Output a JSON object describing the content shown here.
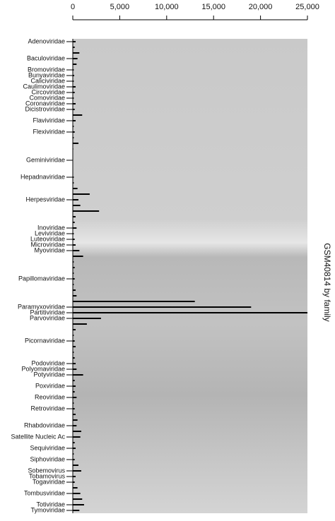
{
  "chart_data": {
    "type": "hbar",
    "y_axis_title": "GSM40814 by family",
    "color": "#000000",
    "xlim": [
      0,
      25000
    ],
    "xticks": [
      0,
      {
        "value": 5000,
        "label": "5,000"
      },
      {
        "value": 10000,
        "label": "10,000"
      },
      {
        "value": 15000,
        "label": "15,000"
      },
      {
        "value": 20000,
        "label": "20,000"
      },
      {
        "value": 25000,
        "label": "25,000"
      }
    ],
    "categories": [
      "Adenoviridae",
      null,
      null,
      "Baculoviridae",
      null,
      "Bromoviridae",
      "Bunyaviridae",
      "Caliciviridae",
      "Caulimoviridae",
      "Circoviridae",
      "Comoviridae",
      "Coronaviridae",
      "Dicistroviridae",
      null,
      "Flaviviridae",
      null,
      "Flexiviridae",
      null,
      null,
      null,
      null,
      "Geminiviridae",
      null,
      null,
      "Hepadnaviridae",
      null,
      null,
      null,
      "Herpesviridae",
      null,
      null,
      null,
      null,
      "Inoviridae",
      "Leviviridae",
      "Luteoviridae",
      "Microviridae",
      "Myoviridae",
      null,
      null,
      null,
      null,
      "Papillomaviridae",
      null,
      null,
      null,
      null,
      "Paramyxoviridae",
      "Partitiviridae",
      "Parvoviridae",
      null,
      null,
      null,
      "Picornaviridae",
      null,
      null,
      null,
      "Podoviridae",
      "Polyomaviridae",
      "Potyviridae",
      null,
      "Poxviridae",
      null,
      "Reoviridae",
      null,
      "Retroviridae",
      null,
      null,
      "Rhabdoviridae",
      null,
      "Satellite Nucleic Ac",
      null,
      "Sequiviridae",
      null,
      "Siphoviridae",
      null,
      "Sobemovirus",
      "Tobamovirus",
      "Togaviridae",
      null,
      "Tombusviridae",
      null,
      "Totiviridae",
      "Tymoviridae"
    ],
    "values": [
      300,
      200,
      700,
      500,
      400,
      100,
      150,
      100,
      300,
      200,
      100,
      300,
      200,
      1000,
      300,
      100,
      200,
      100,
      600,
      50,
      0,
      0,
      0,
      0,
      100,
      100,
      500,
      1800,
      600,
      800,
      2800,
      300,
      200,
      400,
      100,
      200,
      300,
      700,
      1100,
      100,
      200,
      100,
      200,
      100,
      300,
      400,
      13000,
      19000,
      25000,
      3000,
      1500,
      300,
      100,
      200,
      300,
      100,
      200,
      300,
      400,
      1100,
      200,
      300,
      200,
      400,
      100,
      200,
      300,
      500,
      400,
      900,
      800,
      200,
      300,
      100,
      200,
      600,
      900,
      300,
      200,
      500,
      800,
      1000,
      1200,
      700
    ]
  }
}
